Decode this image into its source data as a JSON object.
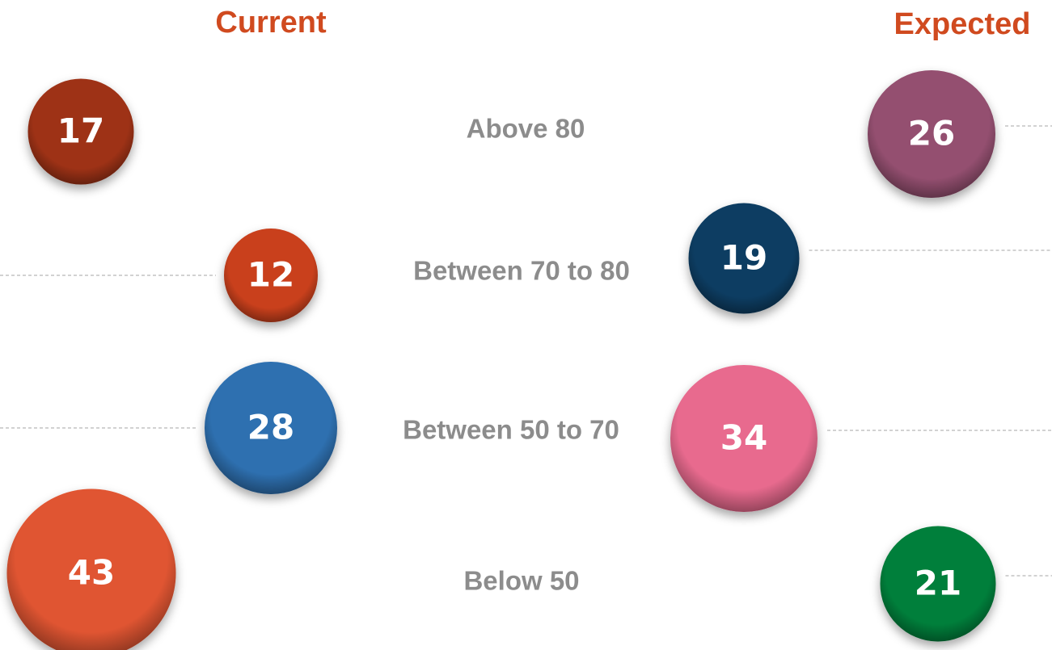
{
  "chart_data": {
    "type": "bubble-comparison",
    "categories": [
      "Above 80",
      "Between 70 to 80",
      "Between 50 to 70",
      "Below 50"
    ],
    "series": [
      {
        "name": "Current",
        "values": [
          17,
          12,
          28,
          43
        ],
        "colors": [
          "#9e3319",
          "#c9401f",
          "#2e70b0",
          "#e05530"
        ]
      },
      {
        "name": "Expected",
        "values": [
          26,
          19,
          34,
          21
        ],
        "colors": [
          "#944f6f",
          "#0a3d62",
          "#e86a8e",
          "#067f3a"
        ]
      }
    ]
  }
}
